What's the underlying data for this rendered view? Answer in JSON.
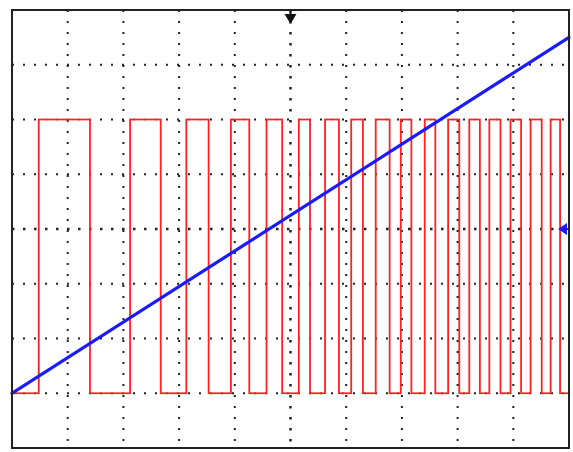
{
  "chart_data": {
    "type": "line",
    "title": "",
    "xlabel": "",
    "ylabel": "",
    "grid": true,
    "grid_style": "dotted",
    "x_divisions": 10,
    "y_divisions": 8,
    "xlim": [
      0,
      10
    ],
    "ylim": [
      -4,
      4
    ],
    "series": [
      {
        "kind": "ramp",
        "color": "#1a1aff",
        "x": [
          0,
          10
        ],
        "y": [
          -3.0,
          3.5
        ]
      },
      {
        "kind": "square-wave",
        "color": "#ff2020",
        "high_level": 2.0,
        "low_level": -3.0,
        "rise_edges": [
          0.48,
          2.12,
          3.13,
          3.93,
          4.57,
          5.15,
          5.62,
          6.09,
          6.53,
          6.98,
          7.41,
          7.83,
          8.21,
          8.57,
          8.95,
          9.31,
          9.67
        ],
        "fall_edges": [
          1.4,
          2.67,
          3.53,
          4.26,
          4.85,
          5.35,
          5.87,
          6.3,
          6.78,
          7.17,
          7.6,
          8.03,
          8.4,
          8.77,
          9.14,
          9.51,
          9.84
        ]
      }
    ],
    "markers": {
      "trigger_position": 5.0,
      "trigger_level": 0.0,
      "marker_color": "#1a1aff",
      "top_marker_color": "#111111"
    },
    "colors": {
      "background": "#ffffff",
      "frame": "#222222",
      "grid": "#222222"
    }
  }
}
